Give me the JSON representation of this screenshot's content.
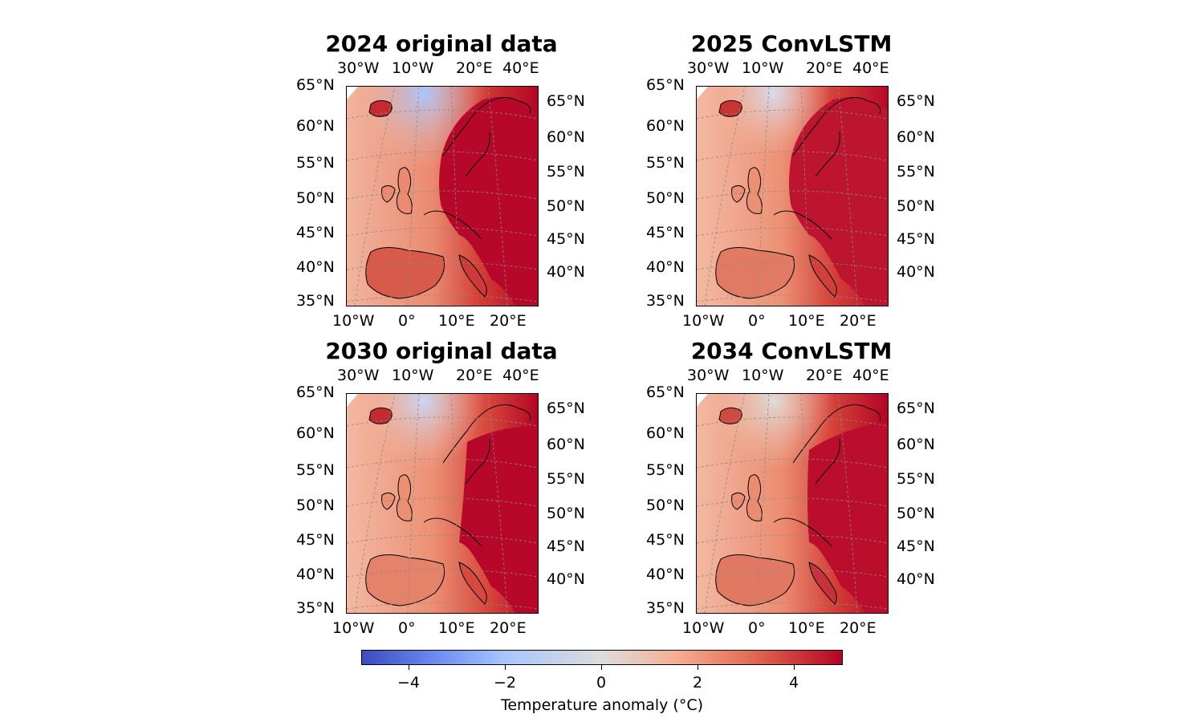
{
  "colors": {
    "warm_dark": "#b40426",
    "warm_mid": "#e2674f",
    "warm_light": "#f6b094",
    "neutral": "#dddcdc",
    "cool_light": "#a9c6fd",
    "cool_dark": "#3b4cc0"
  },
  "panels": [
    {
      "title": "2024 original data",
      "top_lon_labels": [
        "30°W",
        "10°W",
        "20°E",
        "40°E"
      ],
      "left_lat_labels": [
        "65°N",
        "60°N",
        "55°N",
        "50°N",
        "45°N",
        "40°N",
        "35°N"
      ],
      "right_lat_labels": [
        "65°N",
        "60°N",
        "55°N",
        "50°N",
        "45°N",
        "40°N"
      ],
      "bottom_lon_labels": [
        "10°W",
        "0°",
        "10°E",
        "20°E"
      ]
    },
    {
      "title": "2025 ConvLSTM",
      "top_lon_labels": [
        "30°W",
        "10°W",
        "20°E",
        "40°E"
      ],
      "left_lat_labels": [
        "65°N",
        "60°N",
        "55°N",
        "50°N",
        "45°N",
        "40°N",
        "35°N"
      ],
      "right_lat_labels": [
        "65°N",
        "60°N",
        "55°N",
        "50°N",
        "45°N",
        "40°N"
      ],
      "bottom_lon_labels": [
        "10°W",
        "0°",
        "10°E",
        "20°E"
      ]
    },
    {
      "title": "2030 original data",
      "top_lon_labels": [
        "30°W",
        "10°W",
        "20°E",
        "40°E"
      ],
      "left_lat_labels": [
        "65°N",
        "60°N",
        "55°N",
        "50°N",
        "45°N",
        "40°N",
        "35°N"
      ],
      "right_lat_labels": [
        "65°N",
        "60°N",
        "55°N",
        "50°N",
        "45°N",
        "40°N"
      ],
      "bottom_lon_labels": [
        "10°W",
        "0°",
        "10°E",
        "20°E"
      ]
    },
    {
      "title": "2034 ConvLSTM",
      "top_lon_labels": [
        "30°W",
        "10°W",
        "20°E",
        "40°E"
      ],
      "left_lat_labels": [
        "65°N",
        "60°N",
        "55°N",
        "50°N",
        "45°N",
        "40°N",
        "35°N"
      ],
      "right_lat_labels": [
        "65°N",
        "60°N",
        "55°N",
        "50°N",
        "45°N",
        "40°N"
      ],
      "bottom_lon_labels": [
        "10°W",
        "0°",
        "10°E",
        "20°E"
      ]
    }
  ],
  "colorbar": {
    "label": "Temperature anomaly (°C)",
    "ticks": [
      "−4",
      "−2",
      "0",
      "2",
      "4"
    ],
    "range": [
      -5,
      5
    ]
  }
}
